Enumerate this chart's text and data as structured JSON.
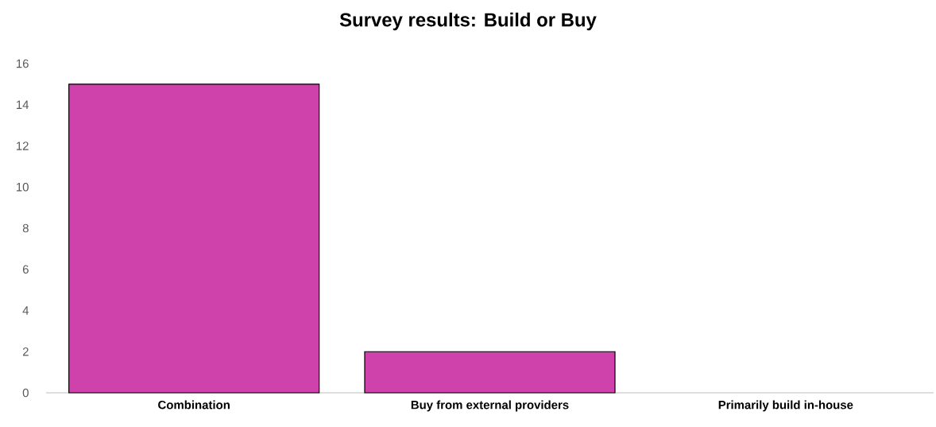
{
  "chart_data": {
    "type": "bar",
    "title": "Survey results: Build or Buy",
    "categories": [
      "Combination",
      "Buy from external providers",
      "Primarily build in-house"
    ],
    "values": [
      15,
      2,
      0
    ],
    "color": "#d042ab",
    "ylim": [
      0,
      16
    ],
    "yticks": [
      0,
      2,
      4,
      6,
      8,
      10,
      12,
      14,
      16
    ]
  }
}
